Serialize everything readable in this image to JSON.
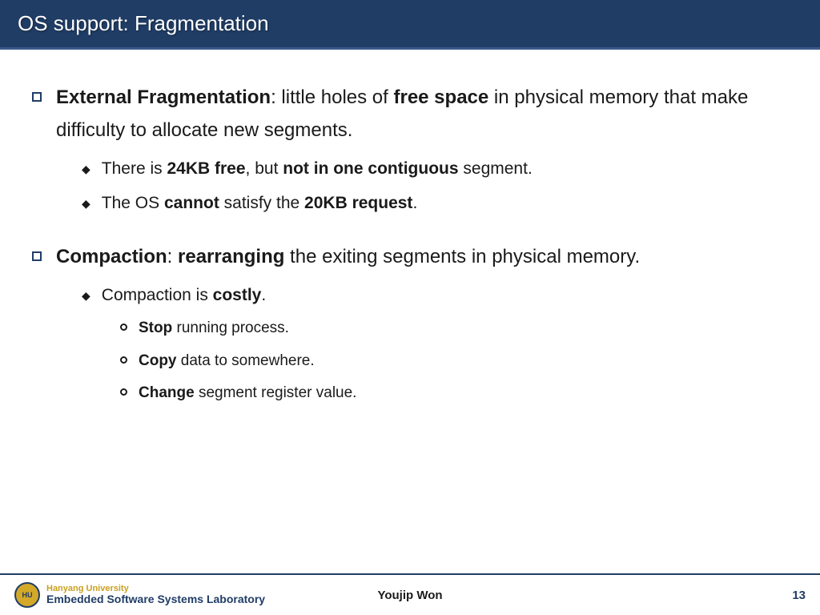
{
  "title": "OS support: Fragmentation",
  "bullets": [
    {
      "html": "<b>External Fragmentation</b>: little holes of <b>free space</b> in physical memory that make difficulty to allocate new segments.",
      "sub": [
        {
          "html": "There is <b>24KB free</b>, but <b>not in one contiguous</b> segment."
        },
        {
          "html": "The OS <b>cannot</b> satisfy the <b>20KB request</b>."
        }
      ]
    },
    {
      "html": "<b>Compaction</b>: <b>rearranging</b> the exiting segments in physical memory.",
      "sub": [
        {
          "html": "Compaction is <b>costly</b>.",
          "sub": [
            {
              "html": "<b>Stop</b> running process."
            },
            {
              "html": "<b>Copy</b> data to somewhere."
            },
            {
              "html": "<b>Change</b> segment register value."
            }
          ]
        }
      ]
    }
  ],
  "footer": {
    "university": "Hanyang University",
    "lab": "Embedded Software Systems Laboratory",
    "author": "Youjip Won",
    "page": "13"
  },
  "colors": {
    "header_bg": "#203d66",
    "accent": "#203d66",
    "gold": "#c9a020"
  }
}
